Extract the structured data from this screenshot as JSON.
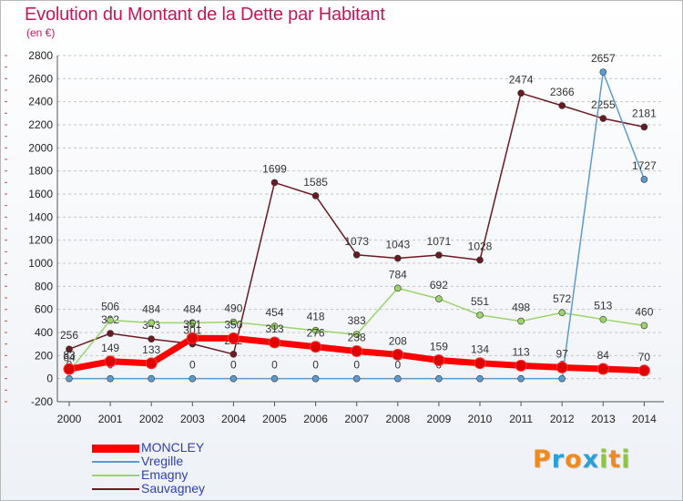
{
  "header": {
    "title": "Evolution du Montant de la Dette par Habitant",
    "subtitle": "(en €)"
  },
  "logo": {
    "letters": [
      "P",
      "r",
      "o",
      "x",
      "i",
      "t",
      "i"
    ],
    "colors": [
      "#f08a1c",
      "#2aa0d8",
      "#f08a1c",
      "#2aa0d8",
      "#8cc63f",
      "#f08a1c",
      "#8cc63f"
    ]
  },
  "chart_data": {
    "type": "line",
    "x": [
      "2000",
      "2001",
      "2002",
      "2003",
      "2004",
      "2005",
      "2006",
      "2007",
      "2008",
      "2009",
      "2010",
      "2011",
      "2012",
      "2013",
      "2014"
    ],
    "ylim": [
      -200,
      2800
    ],
    "yticks": [
      -200,
      0,
      200,
      400,
      600,
      800,
      1000,
      1200,
      1400,
      1600,
      1800,
      2000,
      2200,
      2400,
      2600,
      2800
    ],
    "grid": "horizontal dashed",
    "legend": "bottom-left",
    "series": [
      {
        "name": "Sauvagney",
        "color": "#6b1a22",
        "width": 1.5,
        "values": [
          256,
          392,
          343,
          301,
          212,
          1699,
          1585,
          1073,
          1043,
          1071,
          1028,
          2474,
          2366,
          2255,
          2181
        ],
        "labels": [
          "256",
          "392",
          "343",
          "301",
          "212",
          "1699",
          "1585",
          "1073",
          "1043",
          "1071",
          "1028",
          "2474",
          "2366",
          "2255",
          "2181"
        ]
      },
      {
        "name": "Emagny",
        "color": "#9ad46a",
        "width": 1.5,
        "values": [
          64,
          506,
          484,
          484,
          490,
          454,
          418,
          383,
          784,
          692,
          551,
          498,
          572,
          513,
          460
        ],
        "labels": [
          "64",
          "506",
          "484",
          "484",
          "490",
          "454",
          "418",
          "383",
          "784",
          "692",
          "551",
          "498",
          "572",
          "513",
          "460"
        ]
      },
      {
        "name": "Vregille",
        "color": "#5b9bd0",
        "width": 1.5,
        "values": [
          0,
          0,
          0,
          0,
          0,
          0,
          0,
          0,
          0,
          0,
          0,
          0,
          0,
          2657,
          1727
        ],
        "labels": [
          "0",
          "0",
          "0",
          "0",
          "0",
          "0",
          "0",
          "0",
          "0",
          "0",
          "0",
          "0",
          "0",
          "2657",
          "1727"
        ]
      },
      {
        "name": "MONCLEY",
        "color": "#ff0000",
        "width": 7,
        "values": [
          83,
          149,
          133,
          351,
          350,
          313,
          276,
          238,
          208,
          159,
          134,
          113,
          97,
          84,
          70
        ],
        "labels": [
          "83",
          "149",
          "133",
          "351",
          "350",
          "313",
          "276",
          "238",
          "208",
          "159",
          "134",
          "113",
          "97",
          "84",
          "70"
        ]
      }
    ]
  }
}
